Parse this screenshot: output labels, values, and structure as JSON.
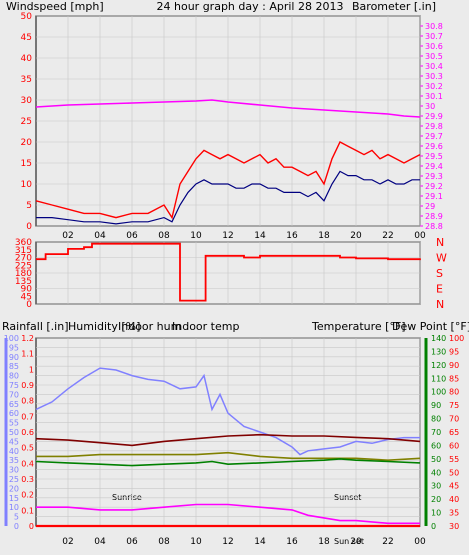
{
  "header": {
    "left": "Windspeed [mph]",
    "center": "24 hour graph day : April 28 2013",
    "right": "Barometer [.in]"
  },
  "colors": {
    "wind": "#ff0000",
    "wind_avg": "#000080",
    "baro": "#ff00ff",
    "winddir": "#ff0000",
    "humidity": "#8080ff",
    "indoor_hum": "#808000",
    "indoor_temp": "#800000",
    "temperature": "#008000",
    "dew_point": "#ff00ff",
    "rain": "#ff0000",
    "frame": "#000000"
  },
  "chart_data": [
    {
      "type": "line",
      "title": "24 hour graph day : April 28 2013",
      "ylabel_left": "Windspeed [mph]",
      "ylabel_right": "Barometer [.in]",
      "x_ticks": [
        "02",
        "04",
        "06",
        "08",
        "10",
        "12",
        "14",
        "16",
        "18",
        "20",
        "22",
        "00"
      ],
      "left_axis": {
        "min": 0,
        "max": 50,
        "ticks": [
          "0",
          "5",
          "10",
          "15",
          "20",
          "25",
          "30",
          "35",
          "40",
          "45",
          "50"
        ]
      },
      "right_axis": {
        "min": 28.8,
        "max": 30.9,
        "ticks": [
          "28.8",
          "28.9",
          "29",
          "29.1",
          "29.2",
          "29.3",
          "29.4",
          "29.5",
          "29.6",
          "29.7",
          "29.8",
          "29.9",
          "30",
          "30.1",
          "30.2",
          "30.3",
          "30.4",
          "30.5",
          "30.6",
          "30.7",
          "30.8"
        ]
      },
      "grid": true,
      "series": [
        {
          "name": "Windspeed",
          "axis": "left",
          "x": [
            0,
            1,
            2,
            3,
            4,
            5,
            6,
            7,
            8,
            8.5,
            9,
            9.5,
            10,
            10.5,
            11,
            11.5,
            12,
            12.5,
            13,
            13.5,
            14,
            14.5,
            15,
            15.5,
            16,
            16.5,
            17,
            17.5,
            18,
            18.5,
            19,
            19.5,
            20,
            20.5,
            21,
            21.5,
            22,
            22.5,
            23,
            23.5,
            24
          ],
          "y": [
            6,
            5,
            4,
            3,
            3,
            2,
            3,
            3,
            5,
            2,
            10,
            13,
            16,
            18,
            17,
            16,
            17,
            16,
            15,
            16,
            17,
            15,
            16,
            14,
            14,
            13,
            12,
            13,
            10,
            16,
            20,
            19,
            18,
            17,
            18,
            16,
            17,
            16,
            15,
            16,
            17
          ]
        },
        {
          "name": "Wind average",
          "axis": "left",
          "x": [
            0,
            1,
            2,
            3,
            4,
            5,
            6,
            7,
            8,
            8.5,
            9,
            9.5,
            10,
            10.5,
            11,
            11.5,
            12,
            12.5,
            13,
            13.5,
            14,
            14.5,
            15,
            15.5,
            16,
            16.5,
            17,
            17.5,
            18,
            18.5,
            19,
            19.5,
            20,
            20.5,
            21,
            21.5,
            22,
            22.5,
            23,
            23.5,
            24
          ],
          "y": [
            2,
            2,
            1.5,
            1,
            1,
            0.5,
            1,
            1,
            2,
            1,
            5,
            8,
            10,
            11,
            10,
            10,
            10,
            9,
            9,
            10,
            10,
            9,
            9,
            8,
            8,
            8,
            7,
            8,
            6,
            10,
            13,
            12,
            12,
            11,
            11,
            10,
            11,
            10,
            10,
            11,
            11
          ]
        },
        {
          "name": "Barometer",
          "axis": "right",
          "x": [
            0,
            2,
            4,
            6,
            8,
            10,
            11,
            12,
            14,
            16,
            18,
            20,
            22,
            23,
            24
          ],
          "y": [
            29.99,
            30.01,
            30.02,
            30.03,
            30.04,
            30.05,
            30.06,
            30.04,
            30.01,
            29.98,
            29.96,
            29.94,
            29.92,
            29.9,
            29.89
          ]
        }
      ]
    },
    {
      "type": "line",
      "ylabel_left": "",
      "ylabel_right": "",
      "x_ticks": [
        "02",
        "04",
        "06",
        "08",
        "10",
        "12",
        "14",
        "16",
        "18",
        "20",
        "22",
        "00"
      ],
      "left_axis": {
        "min": 0,
        "max": 360,
        "ticks": [
          "0",
          "90",
          "180",
          "270",
          "360"
        ],
        "minor": [
          "45",
          "135",
          "225",
          "315"
        ]
      },
      "right_labels": [
        "N",
        "W",
        "S",
        "E",
        "N"
      ],
      "series": [
        {
          "name": "Wind direction",
          "x": [
            0,
            0.5,
            0.6,
            1.5,
            2,
            3,
            3.5,
            5,
            6,
            7,
            8.8,
            9,
            9.1,
            10.5,
            10.6,
            11,
            12,
            13,
            14,
            15,
            16,
            17,
            18,
            19,
            20,
            21,
            22,
            23,
            24
          ],
          "y": [
            260,
            260,
            290,
            290,
            320,
            330,
            350,
            350,
            350,
            350,
            350,
            20,
            20,
            20,
            280,
            280,
            280,
            270,
            280,
            280,
            280,
            280,
            280,
            270,
            265,
            265,
            260,
            260,
            265
          ]
        }
      ]
    },
    {
      "type": "line",
      "ylabel_left": "Rainfall [.in]",
      "legend": [
        "Humidity [%]",
        "Indoor hum",
        "Indoor temp",
        "Temperature [°F]",
        "Dew Point [°F]"
      ],
      "x_ticks": [
        "02",
        "04",
        "06",
        "08",
        "10",
        "12",
        "14",
        "16",
        "18",
        "20",
        "22",
        "00"
      ],
      "rain_axis": {
        "min": 0,
        "max": 1.2,
        "ticks": [
          "0",
          "0.1",
          "0.2",
          "0.3",
          "0.4",
          "0.5",
          "0.6",
          "0.7",
          "0.8",
          "0.9",
          "1",
          "1.1",
          "1.2"
        ]
      },
      "hum_axis": {
        "min": 0,
        "max": 100,
        "ticks": [
          "0",
          "5",
          "10",
          "15",
          "20",
          "25",
          "30",
          "35",
          "40",
          "45",
          "50",
          "55",
          "60",
          "65",
          "70",
          "75",
          "80",
          "85",
          "90",
          "95",
          "100"
        ]
      },
      "temp_axis": {
        "min": 0,
        "max": 140,
        "ticks": [
          "0",
          "10",
          "20",
          "30",
          "40",
          "50",
          "60",
          "70",
          "80",
          "90",
          "100",
          "110",
          "120",
          "130",
          "140"
        ]
      },
      "dew_axis": {
        "min": 30,
        "max": 100,
        "ticks": [
          "30",
          "35",
          "40",
          "45",
          "50",
          "55",
          "60",
          "65",
          "70",
          "75",
          "80",
          "85",
          "90",
          "95",
          "100"
        ]
      },
      "annotations": [
        "Sunrise",
        "Sun set",
        "Sunset"
      ],
      "series": [
        {
          "name": "Humidity [%]",
          "x": [
            0,
            1,
            2,
            3,
            4,
            5,
            6,
            7,
            8,
            9,
            10,
            10.5,
            11,
            11.5,
            12,
            13,
            14,
            15,
            16,
            16.5,
            17,
            18,
            19,
            20,
            21,
            22,
            23,
            24
          ],
          "y": [
            62,
            66,
            73,
            79,
            84,
            83,
            80,
            78,
            77,
            73,
            74,
            80,
            62,
            70,
            60,
            53,
            50,
            47,
            42,
            38,
            40,
            41,
            42,
            45,
            44,
            46,
            47,
            47
          ]
        },
        {
          "name": "Indoor hum",
          "x": [
            0,
            2,
            4,
            6,
            8,
            10,
            12,
            14,
            16,
            18,
            20,
            22,
            24
          ],
          "y": [
            37,
            37,
            38,
            38,
            38,
            38,
            39,
            37,
            36,
            36,
            36,
            35,
            36
          ]
        },
        {
          "name": "Indoor temp",
          "x": [
            0,
            2,
            4,
            6,
            8,
            10,
            12,
            14,
            16,
            18,
            20,
            22,
            24
          ],
          "y": [
            65,
            64,
            62,
            60,
            63,
            65,
            67,
            68,
            67,
            67,
            66,
            65,
            63
          ]
        },
        {
          "name": "Temperature [°F]",
          "x": [
            0,
            2,
            4,
            6,
            8,
            10,
            11,
            12,
            14,
            16,
            18,
            19,
            20,
            22,
            24
          ],
          "y": [
            48,
            47,
            46,
            45,
            46,
            47,
            48,
            46,
            47,
            48,
            49,
            50,
            49,
            48,
            47
          ]
        },
        {
          "name": "Dew Point [°F]",
          "x": [
            0,
            2,
            4,
            6,
            8,
            10,
            12,
            14,
            16,
            17,
            18,
            19,
            20,
            22,
            24
          ],
          "y": [
            37,
            37,
            36,
            36,
            37,
            38,
            38,
            37,
            36,
            34,
            33,
            32,
            32,
            31,
            31
          ]
        },
        {
          "name": "Rainfall [.in]",
          "x": [
            0,
            24
          ],
          "y": [
            0,
            0
          ]
        }
      ]
    }
  ]
}
